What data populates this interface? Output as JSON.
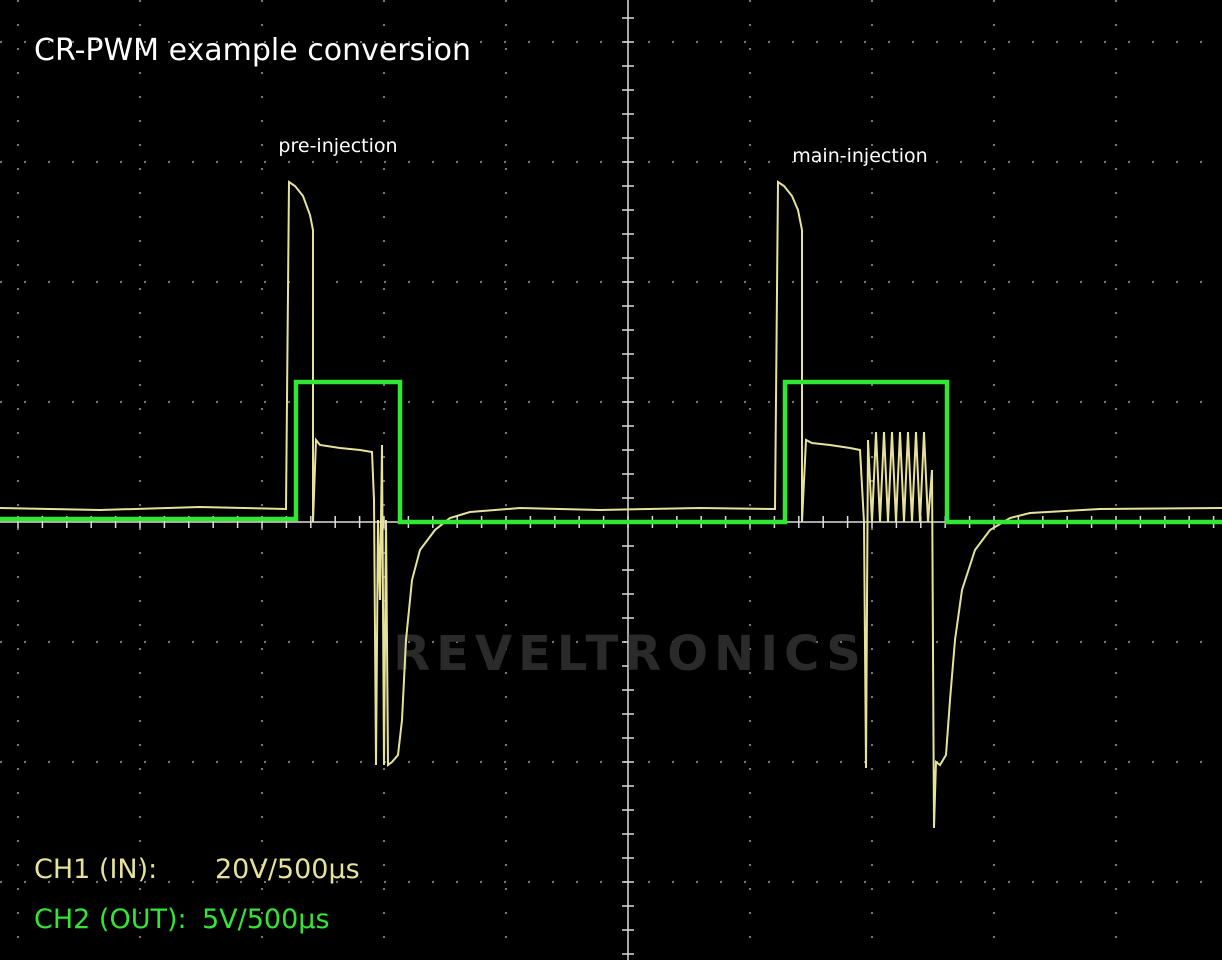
{
  "screen": {
    "title": "CR-PWM example conversion",
    "annotations": [
      "pre-injection",
      "main-injection"
    ],
    "watermark": "REVELTRONICS",
    "channels": [
      {
        "label": "CH1 (IN):",
        "scale": "20V/500µs"
      },
      {
        "label": "CH2 (OUT):",
        "scale": "5V/500µs"
      }
    ]
  }
}
